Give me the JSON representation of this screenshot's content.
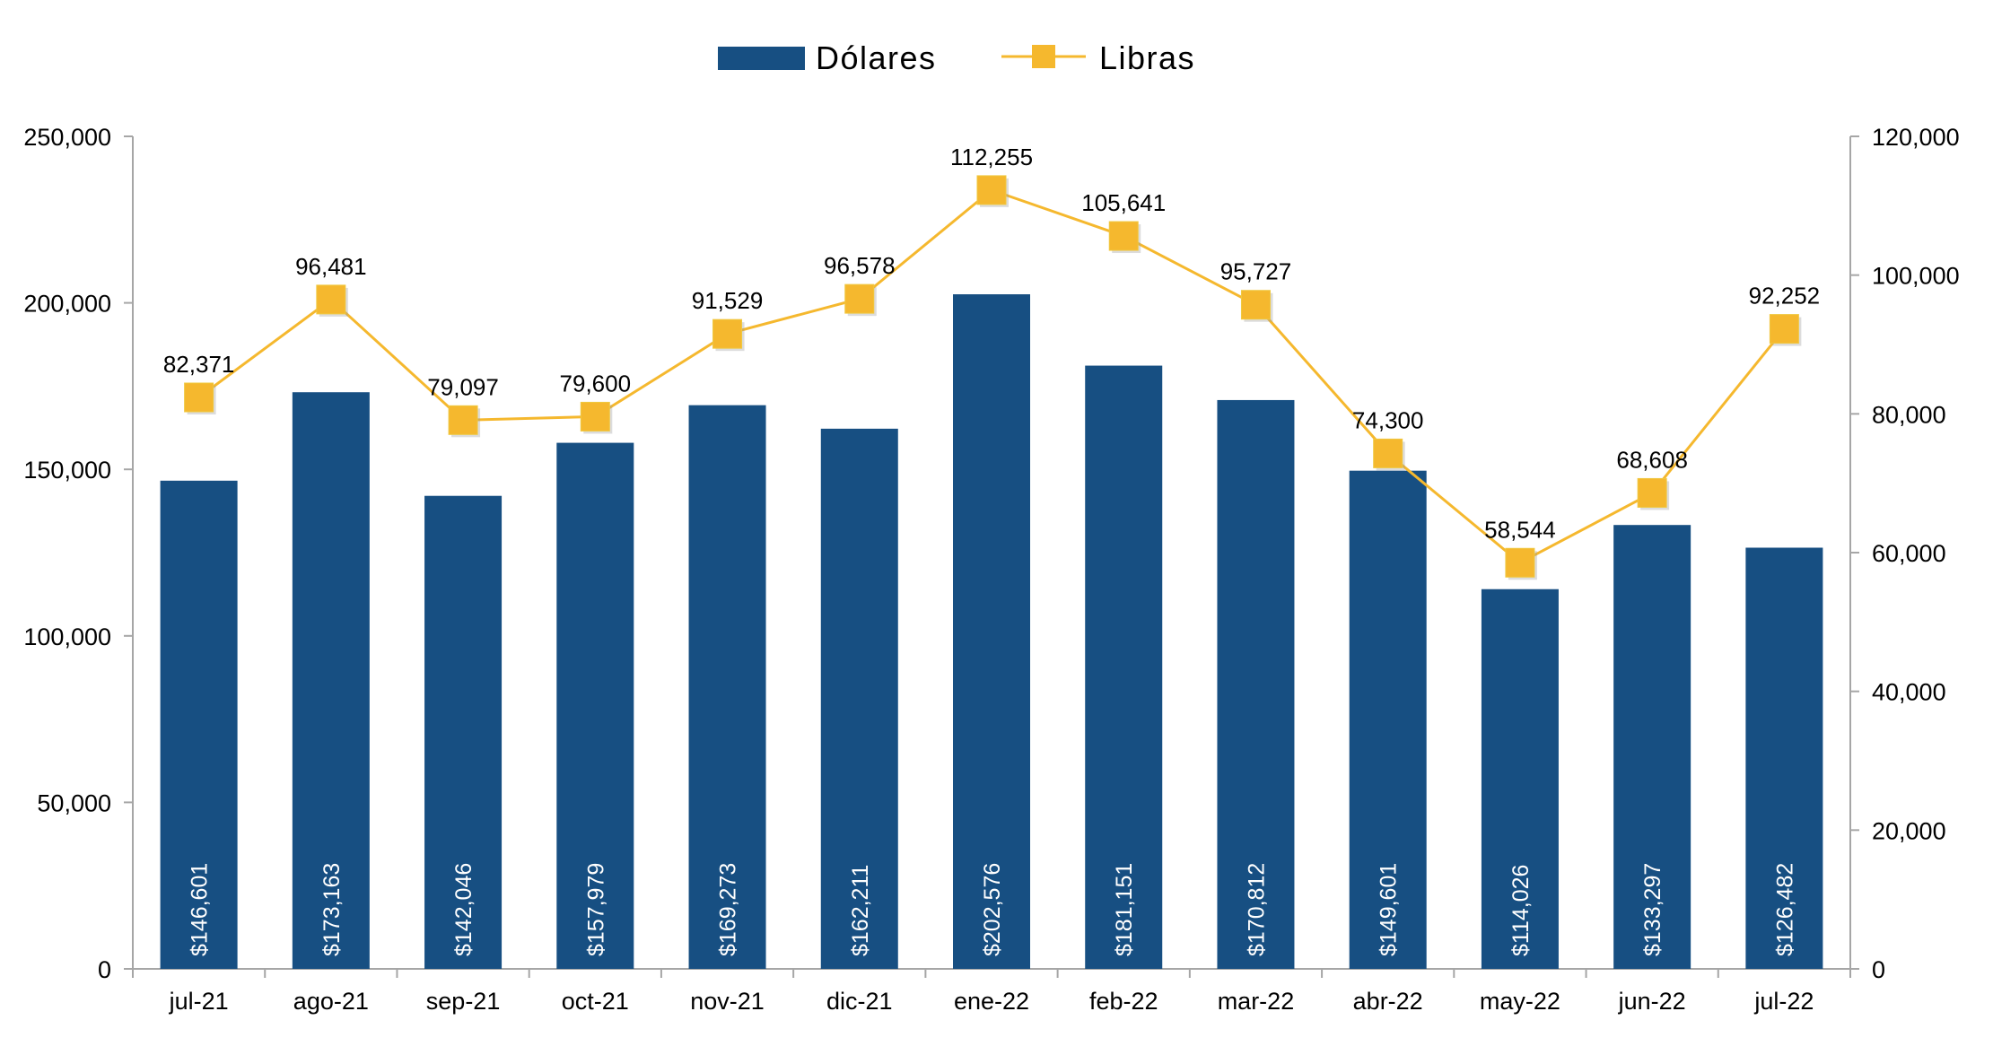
{
  "chart_data": {
    "type": "bar",
    "categories": [
      "jul-21",
      "ago-21",
      "sep-21",
      "oct-21",
      "nov-21",
      "dic-21",
      "ene-22",
      "feb-22",
      "mar-22",
      "abr-22",
      "may-22",
      "jun-22",
      "jul-22"
    ],
    "series": [
      {
        "name": "Dólares",
        "type": "bar",
        "axis": "left",
        "values": [
          146601,
          173163,
          142046,
          157979,
          169273,
          162211,
          202576,
          181151,
          170812,
          149601,
          114026,
          133297,
          126482
        ],
        "labels": [
          "$146,601",
          "$173,163",
          "$142,046",
          "$157,979",
          "$169,273",
          "$162,211",
          "$202,576",
          "$181,151",
          "$170,812",
          "$149,601",
          "$114,026",
          "$133,297",
          "$126,482"
        ],
        "color": "#174F82"
      },
      {
        "name": "Libras",
        "type": "line",
        "axis": "right",
        "values": [
          82371,
          96481,
          79097,
          79600,
          91529,
          96578,
          112255,
          105641,
          95727,
          74300,
          58544,
          68608,
          92252
        ],
        "labels": [
          "82,371",
          "96,481",
          "79,097",
          "79,600",
          "91,529",
          "96,578",
          "112,255",
          "105,641",
          "95,727",
          "74,300",
          "58,544",
          "68,608",
          "92,252"
        ],
        "color": "#F5B82E"
      }
    ],
    "y_left": {
      "ylim": [
        0,
        250000
      ],
      "ticks": [
        "0",
        "50,000",
        "100,000",
        "150,000",
        "200,000",
        "250,000"
      ]
    },
    "y_right": {
      "ylim": [
        0,
        120000
      ],
      "ticks": [
        "0",
        "20,000",
        "40,000",
        "60,000",
        "80,000",
        "100,000",
        "120,000"
      ]
    },
    "legend": {
      "position": "top-center"
    },
    "grid": false,
    "axis_color": "#A6A6A6"
  }
}
